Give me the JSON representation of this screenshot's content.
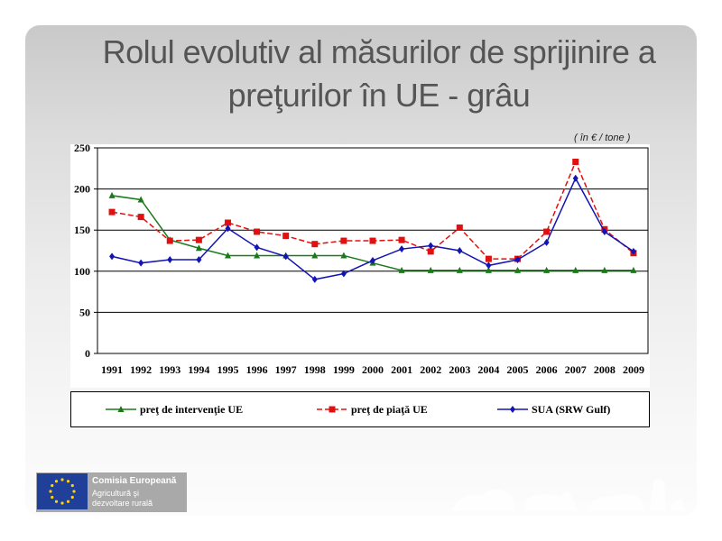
{
  "slide": {
    "title_line1": "Rolul evolutiv al măsurilor de sprijinire a",
    "title_line2": "preţurilor în UE - grâu",
    "unit_note": "( în € / tone )"
  },
  "logo": {
    "title": "Comisia Europeană",
    "sub1": "Agricultură şi",
    "sub2": "dezvoltare rurală"
  },
  "colors": {
    "intervention": "#1a7a1a",
    "market": "#e01010",
    "usa": "#1414b4",
    "eu_flag": "#1f3f99",
    "eu_stars": "#ffd200"
  },
  "chart_data": {
    "type": "line",
    "x": [
      "1991",
      "1992",
      "1993",
      "1994",
      "1995",
      "1996",
      "1997",
      "1998",
      "1999",
      "2000",
      "2001",
      "2002",
      "2003",
      "2004",
      "2005",
      "2006",
      "2007",
      "2008",
      "2009"
    ],
    "yticks": [
      0,
      50,
      100,
      150,
      200,
      250
    ],
    "ylim": [
      0,
      250
    ],
    "grid": "horizontal",
    "legend_position": "bottom",
    "series": [
      {
        "name": "preţ de intervenţie UE",
        "color": "#1a7a1a",
        "marker": "triangle",
        "dash": "solid",
        "values": [
          192,
          187,
          138,
          128,
          119,
          119,
          119,
          119,
          119,
          110,
          101,
          101,
          101,
          101,
          101,
          101,
          101,
          101,
          101
        ]
      },
      {
        "name": "preţ de piaţă UE",
        "color": "#e01010",
        "marker": "square",
        "dash": "dashed",
        "values": [
          172,
          166,
          137,
          138,
          159,
          148,
          143,
          133,
          137,
          137,
          138,
          124,
          153,
          115,
          115,
          148,
          233,
          151,
          122
        ]
      },
      {
        "name": "SUA (SRW Gulf)",
        "color": "#1414b4",
        "marker": "diamond",
        "dash": "solid",
        "values": [
          118,
          110,
          114,
          114,
          152,
          129,
          118,
          90,
          97,
          113,
          127,
          131,
          125,
          107,
          114,
          135,
          213,
          148,
          124
        ]
      }
    ]
  }
}
